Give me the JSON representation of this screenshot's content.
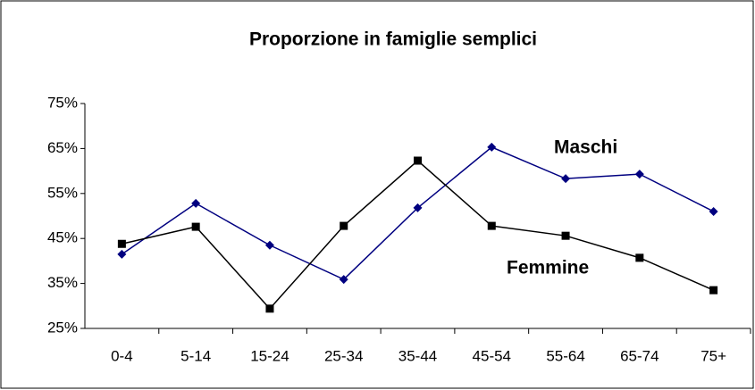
{
  "chart_data": {
    "type": "line",
    "title": "Proporzione in famiglie semplici",
    "categories": [
      "0-4",
      "5-14",
      "15-24",
      "25-34",
      "35-44",
      "45-54",
      "55-64",
      "65-74",
      "75+"
    ],
    "series": [
      {
        "name": "Maschi",
        "color": "#000080",
        "marker": "diamond",
        "values": [
          41.5,
          52.8,
          43.5,
          35.9,
          51.8,
          65.3,
          58.3,
          59.3,
          51.0
        ]
      },
      {
        "name": "Femmine",
        "color": "#000000",
        "marker": "square",
        "values": [
          43.8,
          47.6,
          29.4,
          47.8,
          62.3,
          47.8,
          45.6,
          40.7,
          33.5
        ]
      }
    ],
    "ylim": [
      25,
      75
    ],
    "yticks": [
      {
        "value": 25,
        "label": "25%"
      },
      {
        "value": 35,
        "label": "35%"
      },
      {
        "value": 45,
        "label": "45%"
      },
      {
        "value": 55,
        "label": "55%"
      },
      {
        "value": 65,
        "label": "65%"
      },
      {
        "value": 75,
        "label": "75%"
      }
    ],
    "grid": false
  }
}
